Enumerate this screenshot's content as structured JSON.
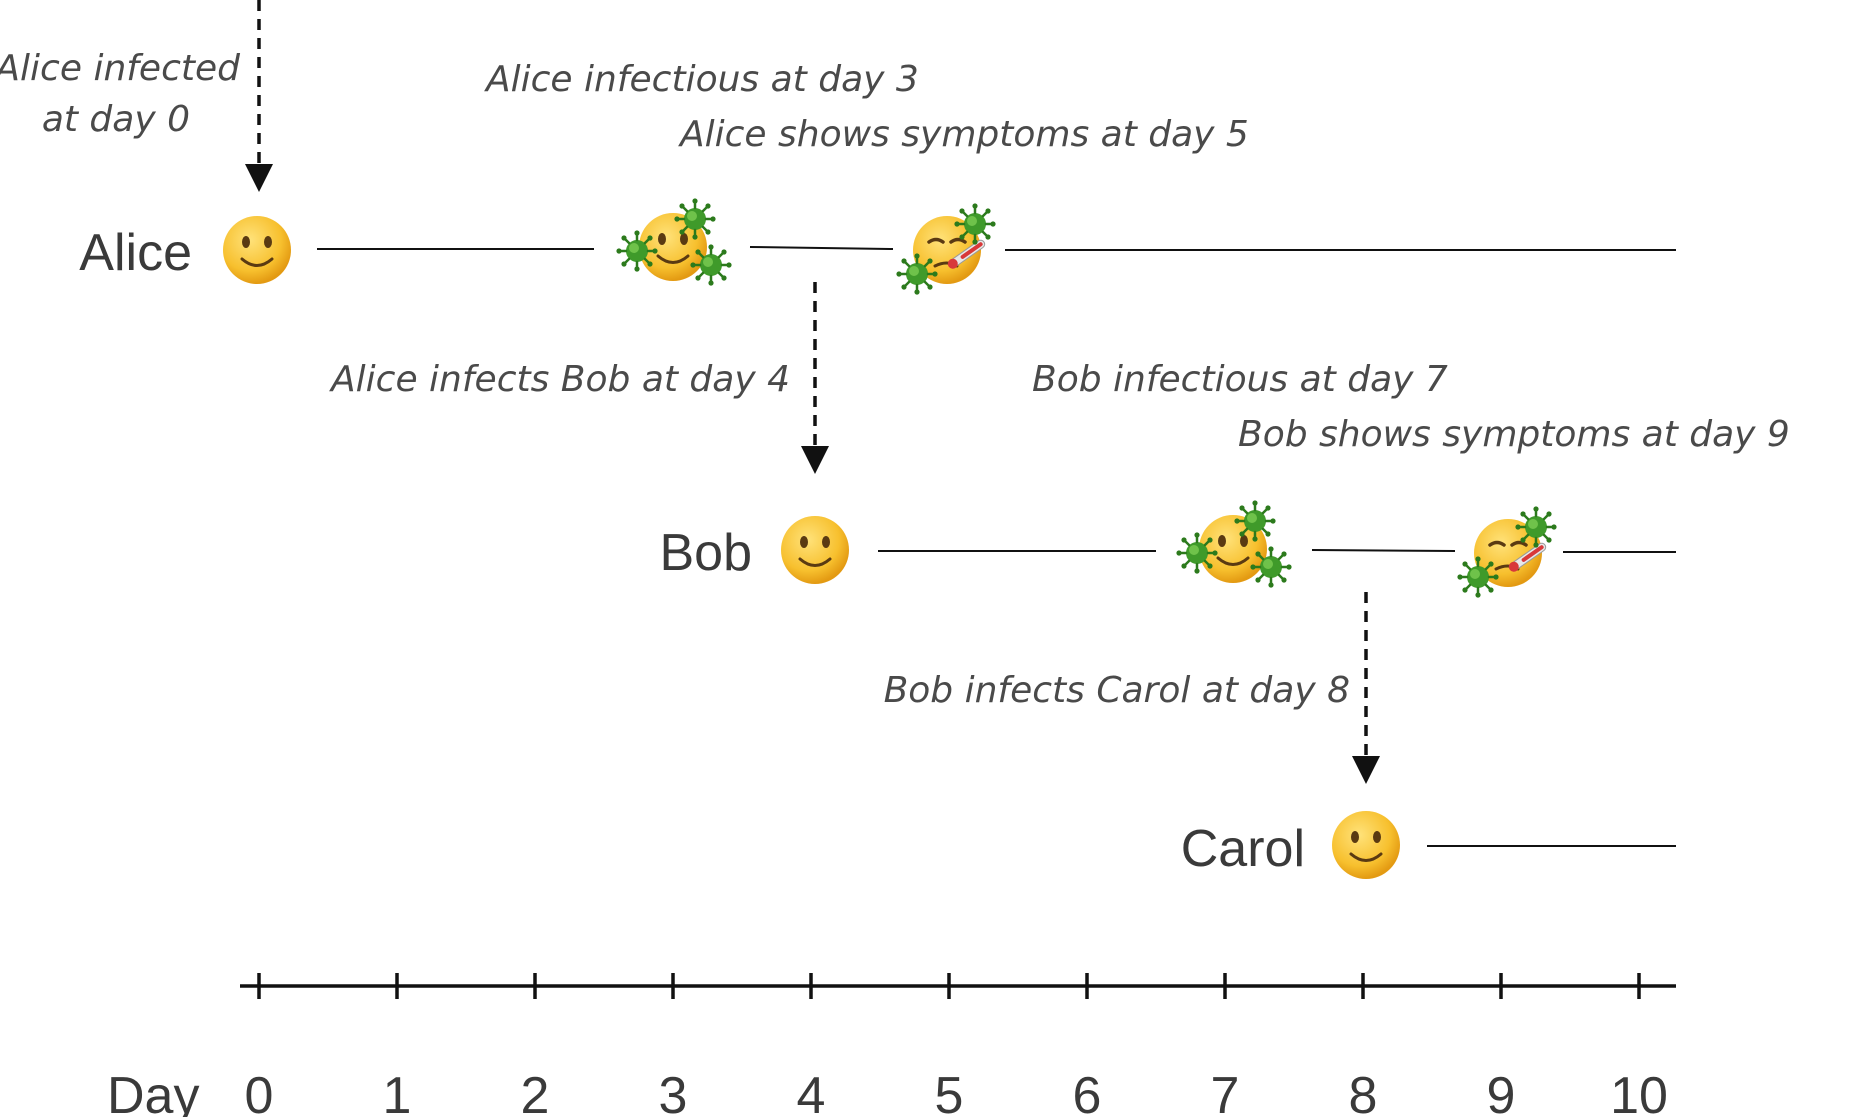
{
  "people": [
    {
      "name": "Alice"
    },
    {
      "name": "Bob"
    },
    {
      "name": "Carol"
    }
  ],
  "annotations": {
    "alice_infected": [
      "Alice infected",
      "at day 0"
    ],
    "alice_infectious": "Alice infectious at day 3",
    "alice_symptoms": "Alice shows symptoms at day 5",
    "alice_infects_bob": "Alice infects Bob at day 4",
    "bob_infectious": "Bob infectious at day 7",
    "bob_symptoms": "Bob shows symptoms at day 9",
    "bob_infects_carol": "Bob infects Carol at day 8"
  },
  "axis": {
    "label": "Day",
    "ticks": [
      "0",
      "1",
      "2",
      "3",
      "4",
      "5",
      "6",
      "7",
      "8",
      "9",
      "10"
    ]
  },
  "icons": {
    "healthy": "slightly-smiling-face-icon",
    "infectious": "smiling-face-with-virus-icon",
    "symptomatic": "face-with-thermometer-icon"
  },
  "colors": {
    "face": "#f7c02e",
    "virus": "#3f9a2a",
    "line": "#111111"
  }
}
